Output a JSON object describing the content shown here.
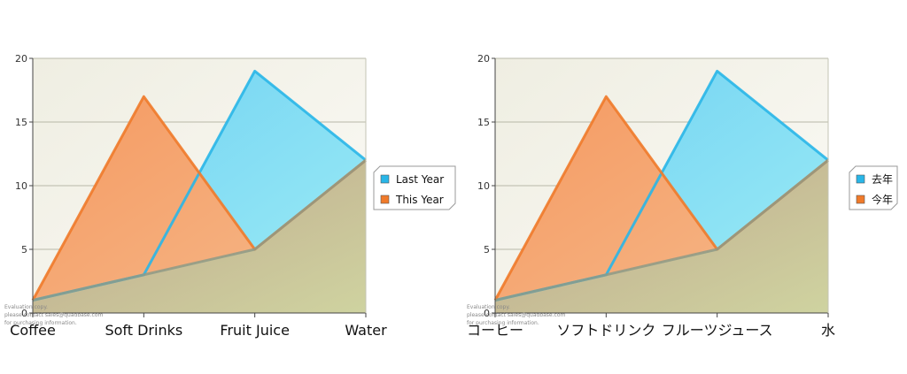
{
  "chart_data": [
    {
      "type": "area",
      "title": "",
      "xlabel": "",
      "ylabel": "",
      "categories": [
        "Coffee",
        "Soft Drinks",
        "Fruit Juice",
        "Water"
      ],
      "ylim": [
        0,
        20
      ],
      "yticks": [
        0,
        5,
        10,
        15,
        20
      ],
      "grid": true,
      "legend_position": "right",
      "series": [
        {
          "name": "Last Year",
          "values": [
            1,
            3,
            19,
            12
          ],
          "color": "#29b6e8"
        },
        {
          "name": "This Year",
          "values": [
            1,
            17,
            5,
            12
          ],
          "color": "#f07a2a"
        }
      ],
      "watermark": [
        "Evaluation copy.",
        "please contact sales@quadbase.com",
        "for purchasing information."
      ]
    },
    {
      "type": "area",
      "title": "",
      "xlabel": "",
      "ylabel": "",
      "categories": [
        "コーヒー",
        "ソフトドリンク",
        "フルーツジュース",
        "水"
      ],
      "ylim": [
        0,
        20
      ],
      "yticks": [
        0,
        5,
        10,
        15,
        20
      ],
      "grid": true,
      "legend_position": "right",
      "series": [
        {
          "name": "去年",
          "values": [
            1,
            3,
            19,
            12
          ],
          "color": "#29b6e8"
        },
        {
          "name": "今年",
          "values": [
            1,
            17,
            5,
            12
          ],
          "color": "#f07a2a"
        }
      ],
      "watermark": [
        "Evaluation copy.",
        "please contact sales@quadbase.com",
        "for purchasing information."
      ]
    }
  ]
}
